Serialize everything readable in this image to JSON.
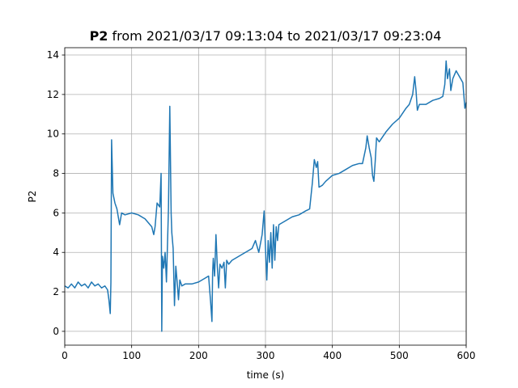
{
  "chart_data": {
    "type": "line",
    "title_parts": [
      "P2",
      "from 2021/03/17 09:13:04 to 2021/03/17 09:23:04"
    ],
    "x_label": "time (s)",
    "y_label": "P2",
    "color": "#1f77b4",
    "grid": true,
    "xlim": [
      0,
      600
    ],
    "ylim": [
      -0.7,
      14.37
    ],
    "xticks": [
      0,
      100,
      200,
      300,
      400,
      500,
      600
    ],
    "yticks": [
      0,
      2,
      4,
      6,
      8,
      10,
      12,
      14
    ],
    "x": [
      0,
      5,
      10,
      15,
      20,
      25,
      30,
      35,
      40,
      45,
      50,
      55,
      60,
      64,
      66,
      68,
      69,
      70,
      72,
      75,
      78,
      80,
      82,
      85,
      90,
      100,
      110,
      120,
      125,
      130,
      133,
      135,
      138,
      142,
      144,
      145,
      146,
      148,
      150,
      152,
      155,
      157,
      159,
      160,
      162,
      164,
      166,
      168,
      170,
      172,
      175,
      180,
      190,
      200,
      210,
      215,
      218,
      220,
      221,
      222,
      224,
      226,
      228,
      230,
      232,
      235,
      238,
      240,
      242,
      245,
      250,
      260,
      270,
      280,
      285,
      290,
      295,
      298,
      300,
      302,
      304,
      306,
      308,
      310,
      312,
      314,
      316,
      318,
      320,
      330,
      340,
      350,
      360,
      366,
      370,
      373,
      376,
      378,
      380,
      385,
      390,
      400,
      410,
      420,
      430,
      440,
      445,
      450,
      452,
      455,
      458,
      460,
      462,
      464,
      466,
      470,
      480,
      490,
      500,
      510,
      515,
      520,
      523,
      525,
      527,
      530,
      540,
      550,
      560,
      565,
      568,
      570,
      572,
      575,
      577,
      580,
      585,
      590,
      595,
      598,
      600
    ],
    "values": [
      2.3,
      2.2,
      2.4,
      2.2,
      2.5,
      2.3,
      2.4,
      2.2,
      2.5,
      2.3,
      2.4,
      2.2,
      2.3,
      2.1,
      1.6,
      0.9,
      2.5,
      9.7,
      7.0,
      6.5,
      6.2,
      5.8,
      5.4,
      6.0,
      5.9,
      6.0,
      5.9,
      5.7,
      5.5,
      5.3,
      4.9,
      5.3,
      6.5,
      6.3,
      8.0,
      0.0,
      3.8,
      3.2,
      4.0,
      2.5,
      6.2,
      11.4,
      6.0,
      5.0,
      4.2,
      1.3,
      3.3,
      2.5,
      1.6,
      2.6,
      2.3,
      2.4,
      2.4,
      2.5,
      2.7,
      2.8,
      1.5,
      0.5,
      3.0,
      3.7,
      2.8,
      4.9,
      3.3,
      2.2,
      3.4,
      3.2,
      3.5,
      2.2,
      3.6,
      3.4,
      3.6,
      3.8,
      4.0,
      4.2,
      4.6,
      4.0,
      4.9,
      6.1,
      4.2,
      2.6,
      4.6,
      3.5,
      5.0,
      3.2,
      5.4,
      3.6,
      5.3,
      4.6,
      5.4,
      5.6,
      5.8,
      5.9,
      6.1,
      6.2,
      7.5,
      8.7,
      8.3,
      8.6,
      7.3,
      7.4,
      7.6,
      7.9,
      8.0,
      8.2,
      8.4,
      8.5,
      8.5,
      9.3,
      9.9,
      9.3,
      8.8,
      7.9,
      7.6,
      8.6,
      9.8,
      9.6,
      10.1,
      10.5,
      10.8,
      11.3,
      11.5,
      12.0,
      12.9,
      12.2,
      11.2,
      11.5,
      11.5,
      11.7,
      11.8,
      11.9,
      12.5,
      13.7,
      12.8,
      13.3,
      12.2,
      12.8,
      13.2,
      12.9,
      12.6,
      11.3,
      11.6
    ]
  }
}
